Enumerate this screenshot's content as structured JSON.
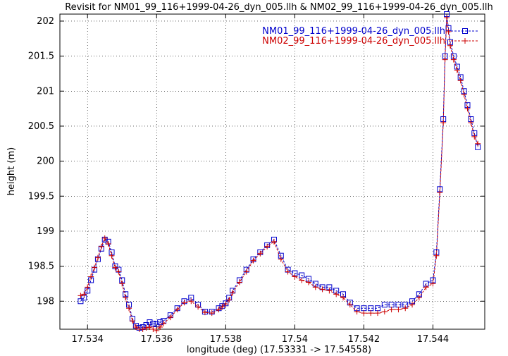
{
  "chart_data": {
    "type": "line",
    "title": "Revisit for NM01_99_116+1999-04-26_dyn_005.llh & NM02_99_116+1999-04-26_dyn_005.llh",
    "xlabel": "longitude (deg) (17.53331 -> 17.54558)",
    "ylabel": "height (m)",
    "xlim": [
      17.5332,
      17.5455
    ],
    "ylim": [
      197.6,
      202.1
    ],
    "xticks": [
      17.534,
      17.536,
      17.538,
      17.54,
      17.542,
      17.544
    ],
    "xtick_labels": [
      "17.534",
      "17.536",
      "17.538",
      "17.54",
      "17.542",
      "17.544"
    ],
    "yticks": [
      198,
      198.5,
      199,
      199.5,
      200,
      200.5,
      201,
      201.5,
      202
    ],
    "ytick_labels": [
      "198",
      "198.5",
      "199",
      "199.5",
      "200",
      "200.5",
      "201",
      "201.5",
      "202"
    ],
    "grid": true,
    "legend": "top-right",
    "series": [
      {
        "name": "NM01_99_116+1999-04-26_dyn_005.llh",
        "color": "#0000cc",
        "marker": "square",
        "line": "dashed",
        "x": [
          17.5338,
          17.5339,
          17.534,
          17.5341,
          17.5342,
          17.5343,
          17.5344,
          17.5345,
          17.5346,
          17.5347,
          17.5348,
          17.5349,
          17.535,
          17.5351,
          17.5352,
          17.5353,
          17.5354,
          17.5355,
          17.5356,
          17.5357,
          17.5358,
          17.5359,
          17.536,
          17.5361,
          17.5362,
          17.5364,
          17.5366,
          17.5368,
          17.537,
          17.5372,
          17.5374,
          17.5376,
          17.5378,
          17.5379,
          17.538,
          17.5381,
          17.5382,
          17.5384,
          17.5386,
          17.5388,
          17.539,
          17.5392,
          17.5394,
          17.5396,
          17.5398,
          17.54,
          17.5402,
          17.5404,
          17.5406,
          17.5408,
          17.541,
          17.5412,
          17.5414,
          17.5416,
          17.5418,
          17.542,
          17.5422,
          17.5424,
          17.5426,
          17.5428,
          17.543,
          17.5432,
          17.5434,
          17.5436,
          17.5438,
          17.544,
          17.5441,
          17.5442,
          17.5443,
          17.54435,
          17.5444,
          17.54445,
          17.5445,
          17.5446,
          17.5447,
          17.5448,
          17.5449,
          17.545,
          17.5451,
          17.5452,
          17.5453
        ],
        "y": [
          198.0,
          198.05,
          198.15,
          198.3,
          198.45,
          198.6,
          198.75,
          198.88,
          198.85,
          198.7,
          198.5,
          198.45,
          198.3,
          198.1,
          197.95,
          197.75,
          197.65,
          197.62,
          197.63,
          197.66,
          197.7,
          197.68,
          197.67,
          197.7,
          197.72,
          197.8,
          197.9,
          198.0,
          198.05,
          197.95,
          197.85,
          197.85,
          197.9,
          197.93,
          197.97,
          198.05,
          198.15,
          198.3,
          198.45,
          198.6,
          198.7,
          198.8,
          198.88,
          198.65,
          198.45,
          198.4,
          198.37,
          198.32,
          198.25,
          198.2,
          198.2,
          198.15,
          198.1,
          197.98,
          197.9,
          197.9,
          197.9,
          197.9,
          197.95,
          197.95,
          197.95,
          197.95,
          198.0,
          198.1,
          198.25,
          198.3,
          198.7,
          199.6,
          200.6,
          201.5,
          202.1,
          201.9,
          201.7,
          201.5,
          201.35,
          201.2,
          201.0,
          200.8,
          200.6,
          200.4,
          200.2
        ],
        "note": ""
      },
      {
        "name": "NM02_99_116+1999-04-26_dyn_005.llh",
        "color": "#cc0000",
        "marker": "plus",
        "line": "dashed",
        "x": [
          17.5338,
          17.5339,
          17.534,
          17.5341,
          17.5342,
          17.5343,
          17.5344,
          17.5345,
          17.5346,
          17.5347,
          17.5348,
          17.5349,
          17.535,
          17.5351,
          17.5352,
          17.5353,
          17.5354,
          17.5355,
          17.5356,
          17.5357,
          17.5358,
          17.5359,
          17.536,
          17.5361,
          17.5362,
          17.5364,
          17.5366,
          17.5368,
          17.537,
          17.5372,
          17.5374,
          17.5376,
          17.5378,
          17.5379,
          17.538,
          17.5381,
          17.5382,
          17.5384,
          17.5386,
          17.5388,
          17.539,
          17.5392,
          17.5394,
          17.5396,
          17.5398,
          17.54,
          17.5402,
          17.5404,
          17.5406,
          17.5408,
          17.541,
          17.5412,
          17.5414,
          17.5416,
          17.5418,
          17.542,
          17.5422,
          17.5424,
          17.5426,
          17.5428,
          17.543,
          17.5432,
          17.5434,
          17.5436,
          17.5438,
          17.544,
          17.5441,
          17.5442,
          17.5443,
          17.54435,
          17.5444,
          17.54445,
          17.5445,
          17.5446,
          17.5447,
          17.5448,
          17.5449,
          17.545,
          17.5451,
          17.5452,
          17.5453
        ],
        "y": [
          198.08,
          198.1,
          198.2,
          198.35,
          198.48,
          198.62,
          198.78,
          198.9,
          198.82,
          198.65,
          198.48,
          198.42,
          198.25,
          198.05,
          197.9,
          197.72,
          197.63,
          197.6,
          197.6,
          197.62,
          197.63,
          197.6,
          197.58,
          197.63,
          197.68,
          197.77,
          197.88,
          197.98,
          198.0,
          197.92,
          197.84,
          197.83,
          197.88,
          197.92,
          197.96,
          198.02,
          198.12,
          198.27,
          198.42,
          198.58,
          198.68,
          198.78,
          198.85,
          198.6,
          198.42,
          198.35,
          198.3,
          198.27,
          198.2,
          198.17,
          198.15,
          198.1,
          198.05,
          197.95,
          197.85,
          197.83,
          197.83,
          197.83,
          197.85,
          197.88,
          197.88,
          197.9,
          197.95,
          198.05,
          198.2,
          198.25,
          198.65,
          199.55,
          200.55,
          201.45,
          202.05,
          201.85,
          201.65,
          201.45,
          201.3,
          201.15,
          200.95,
          200.75,
          200.55,
          200.35,
          200.25
        ],
        "note": ""
      }
    ]
  }
}
